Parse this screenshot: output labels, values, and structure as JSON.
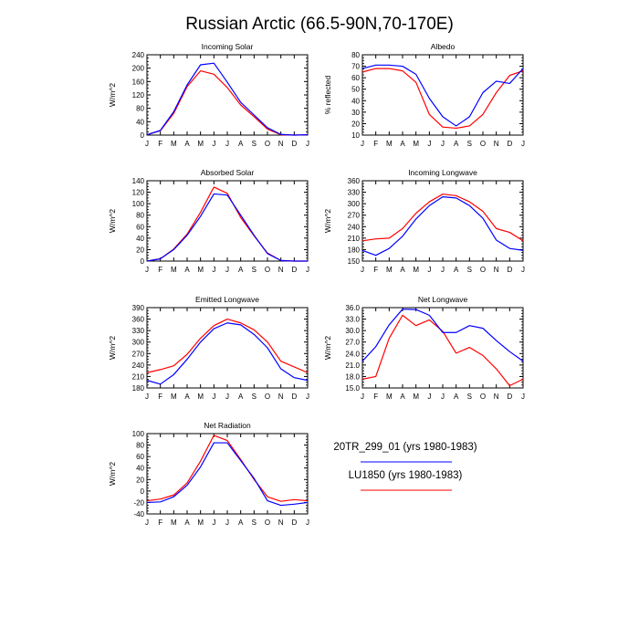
{
  "title": "Russian Arctic (66.5-90N,70-170E)",
  "months": [
    "J",
    "F",
    "M",
    "A",
    "M",
    "J",
    "J",
    "A",
    "S",
    "O",
    "N",
    "D",
    "J"
  ],
  "colors": {
    "series_1": "#0000ff",
    "series_2": "#ff0000",
    "axes": "#000000"
  },
  "legend": {
    "items": [
      {
        "label": "20TR_299_01 (yrs 1980-1983)",
        "color": "#0000ff"
      },
      {
        "label": "LU1850 (yrs 1980-1983)",
        "color": "#ff0000"
      }
    ]
  },
  "chart_data": [
    {
      "type": "line",
      "title": "Incoming Solar",
      "xlabel": "",
      "ylabel": "W/m^2",
      "categories": [
        "J",
        "F",
        "M",
        "A",
        "M",
        "J",
        "J",
        "A",
        "S",
        "O",
        "N",
        "D",
        "J"
      ],
      "ylim": [
        0,
        240
      ],
      "yticks": [
        0,
        40,
        80,
        120,
        160,
        200,
        240
      ],
      "ytick_labels": [
        "0",
        "40",
        "80",
        "120",
        "160",
        "200",
        "240"
      ],
      "series": [
        {
          "name": "20TR_299_01 (yrs 1980-1983)",
          "values": [
            1,
            14,
            70,
            150,
            210,
            215,
            158,
            98,
            60,
            22,
            2,
            0,
            1
          ]
        },
        {
          "name": "LU1850 (yrs 1980-1983)",
          "values": [
            1,
            13,
            65,
            145,
            192,
            182,
            142,
            90,
            55,
            18,
            1,
            0,
            1
          ]
        }
      ]
    },
    {
      "type": "line",
      "title": "Albedo",
      "xlabel": "",
      "ylabel": "% reflected",
      "categories": [
        "J",
        "F",
        "M",
        "A",
        "M",
        "J",
        "J",
        "A",
        "S",
        "O",
        "N",
        "D",
        "J"
      ],
      "ylim": [
        10,
        80
      ],
      "yticks": [
        10,
        20,
        30,
        40,
        50,
        60,
        70,
        80
      ],
      "ytick_labels": [
        "10",
        "20",
        "30",
        "40",
        "50",
        "60",
        "70",
        "80"
      ],
      "series": [
        {
          "name": "20TR_299_01 (yrs 1980-1983)",
          "values": [
            68,
            71,
            71,
            70,
            63,
            42,
            26,
            18,
            26,
            47,
            57,
            55,
            68
          ]
        },
        {
          "name": "LU1850 (yrs 1980-1983)",
          "values": [
            65,
            68,
            68,
            66,
            56,
            28,
            17,
            16,
            18,
            28,
            47,
            62,
            66
          ]
        }
      ]
    },
    {
      "type": "line",
      "title": "Absorbed Solar",
      "xlabel": "",
      "ylabel": "W/m^2",
      "categories": [
        "J",
        "F",
        "M",
        "A",
        "M",
        "J",
        "J",
        "A",
        "S",
        "O",
        "N",
        "D",
        "J"
      ],
      "ylim": [
        0,
        140
      ],
      "yticks": [
        0,
        20,
        40,
        60,
        80,
        100,
        120,
        140
      ],
      "ytick_labels": [
        "0",
        "20",
        "40",
        "60",
        "80",
        "100",
        "120",
        "140"
      ],
      "series": [
        {
          "name": "20TR_299_01 (yrs 1980-1983)",
          "values": [
            0,
            4,
            20,
            45,
            78,
            117,
            115,
            80,
            45,
            13,
            1,
            0,
            0
          ]
        },
        {
          "name": "LU1850 (yrs 1980-1983)",
          "values": [
            0,
            4,
            21,
            47,
            85,
            129,
            118,
            76,
            44,
            14,
            1,
            0,
            0
          ]
        }
      ]
    },
    {
      "type": "line",
      "title": "Incoming Longwave",
      "xlabel": "",
      "ylabel": "W/m^2",
      "categories": [
        "J",
        "F",
        "M",
        "A",
        "M",
        "J",
        "J",
        "A",
        "S",
        "O",
        "N",
        "D",
        "J"
      ],
      "ylim": [
        150,
        360
      ],
      "yticks": [
        150,
        180,
        210,
        240,
        270,
        300,
        330,
        360
      ],
      "ytick_labels": [
        "150",
        "180",
        "210",
        "240",
        "270",
        "300",
        "330",
        "360"
      ],
      "series": [
        {
          "name": "20TR_299_01 (yrs 1980-1983)",
          "values": [
            178,
            165,
            183,
            215,
            260,
            295,
            318,
            315,
            295,
            262,
            205,
            183,
            178
          ]
        },
        {
          "name": "LU1850 (yrs 1980-1983)",
          "values": [
            203,
            208,
            210,
            235,
            275,
            305,
            325,
            321,
            305,
            280,
            235,
            225,
            203
          ]
        }
      ]
    },
    {
      "type": "line",
      "title": "Emitted Longwave",
      "xlabel": "",
      "ylabel": "W/m^2",
      "categories": [
        "J",
        "F",
        "M",
        "A",
        "M",
        "J",
        "J",
        "A",
        "S",
        "O",
        "N",
        "D",
        "J"
      ],
      "ylim": [
        180,
        390
      ],
      "yticks": [
        180,
        210,
        240,
        270,
        300,
        330,
        360,
        390
      ],
      "ytick_labels": [
        "180",
        "210",
        "240",
        "270",
        "300",
        "330",
        "360",
        "390"
      ],
      "series": [
        {
          "name": "20TR_299_01 (yrs 1980-1983)",
          "values": [
            200,
            190,
            215,
            255,
            300,
            335,
            350,
            345,
            320,
            285,
            230,
            207,
            200
          ]
        },
        {
          "name": "LU1850 (yrs 1980-1983)",
          "values": [
            220,
            228,
            238,
            268,
            310,
            343,
            360,
            350,
            332,
            300,
            250,
            235,
            220
          ]
        }
      ]
    },
    {
      "type": "line",
      "title": "Net Longwave",
      "xlabel": "",
      "ylabel": "W/m^2",
      "categories": [
        "J",
        "F",
        "M",
        "A",
        "M",
        "J",
        "J",
        "A",
        "S",
        "O",
        "N",
        "D",
        "J"
      ],
      "ylim": [
        15,
        36
      ],
      "yticks": [
        15,
        18,
        21,
        24,
        27,
        30,
        33,
        36
      ],
      "ytick_labels": [
        "15.0",
        "18.0",
        "21.0",
        "24.0",
        "27.0",
        "30.0",
        "33.0",
        "36.0"
      ],
      "series": [
        {
          "name": "20TR_299_01 (yrs 1980-1983)",
          "values": [
            22,
            25.8,
            31.5,
            35.6,
            35.5,
            34,
            29.5,
            29.5,
            31.3,
            30.6,
            27.4,
            24.5,
            22
          ]
        },
        {
          "name": "LU1850 (yrs 1980-1983)",
          "values": [
            17.3,
            18,
            28,
            34,
            31.3,
            32.8,
            29.8,
            24.1,
            25.6,
            23.5,
            20,
            15.6,
            17.3
          ]
        }
      ]
    },
    {
      "type": "line",
      "title": "Net Radiation",
      "xlabel": "",
      "ylabel": "W/m^2",
      "categories": [
        "J",
        "F",
        "M",
        "A",
        "M",
        "J",
        "J",
        "A",
        "S",
        "O",
        "N",
        "D",
        "J"
      ],
      "ylim": [
        -40,
        100
      ],
      "yticks": [
        -40,
        -20,
        0,
        20,
        40,
        60,
        80,
        100
      ],
      "ytick_labels": [
        "-40",
        "-20",
        "0",
        "20",
        "40",
        "60",
        "80",
        "100"
      ],
      "series": [
        {
          "name": "20TR_299_01 (yrs 1980-1983)",
          "values": [
            -20,
            -19,
            -10,
            10,
            42,
            84,
            84,
            53,
            22,
            -17,
            -25,
            -23,
            -20
          ]
        },
        {
          "name": "LU1850 (yrs 1980-1983)",
          "values": [
            -17,
            -14,
            -7,
            14,
            52,
            97,
            88,
            55,
            20,
            -10,
            -18,
            -15,
            -17
          ]
        }
      ]
    }
  ]
}
